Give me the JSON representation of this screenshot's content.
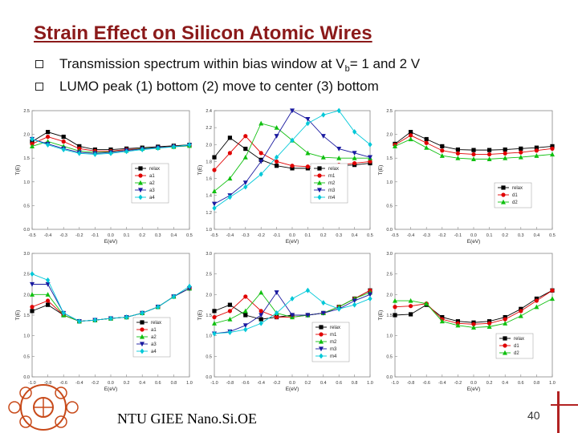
{
  "header": {
    "title": "Strain Effect on Silicon Atomic Wires"
  },
  "bullets": [
    {
      "text_before": "Transmission spectrum within bias window at V",
      "subscript": "b",
      "text_after": "= 1 and 2 V"
    },
    {
      "text": "LUMO peak (1) bottom (2) move to center (3) bottom"
    }
  ],
  "footer": {
    "text": "NTU GIEE Nano.Si.OE",
    "page": "40"
  },
  "chart_data": [
    {
      "type": "line",
      "xlabel": "E(eV)",
      "ylabel": "T(E)",
      "xlim": [
        -0.5,
        0.5
      ],
      "ylim": [
        0,
        2.5
      ],
      "xticks": [
        "-0.5",
        "-0.4",
        "-0.3",
        "-0.2",
        "-0.1",
        "0.0",
        "0.1",
        "0.2",
        "0.3",
        "0.4",
        "0.5"
      ],
      "yticks": [
        "0.0",
        "0.5",
        "1.0",
        "1.5",
        "2.0",
        "2.5"
      ],
      "legend_position": "right",
      "x": [
        -0.5,
        -0.4,
        -0.3,
        -0.2,
        -0.1,
        0.0,
        0.1,
        0.2,
        0.3,
        0.4,
        0.5
      ],
      "series": [
        {
          "name": "relax",
          "color": "#000000",
          "marker": "square",
          "values": [
            1.85,
            2.05,
            1.95,
            1.75,
            1.68,
            1.68,
            1.7,
            1.72,
            1.74,
            1.76,
            1.78
          ]
        },
        {
          "name": "a1",
          "color": "#e00000",
          "marker": "circle",
          "values": [
            1.8,
            1.95,
            1.85,
            1.7,
            1.65,
            1.65,
            1.68,
            1.7,
            1.72,
            1.75,
            1.77
          ]
        },
        {
          "name": "a2",
          "color": "#10c010",
          "marker": "triangle",
          "values": [
            1.75,
            1.85,
            1.75,
            1.65,
            1.62,
            1.63,
            1.66,
            1.7,
            1.72,
            1.74,
            1.76
          ]
        },
        {
          "name": "a3",
          "color": "#1a1aa0",
          "marker": "triangle-down",
          "values": [
            1.9,
            1.8,
            1.7,
            1.62,
            1.6,
            1.62,
            1.66,
            1.69,
            1.72,
            1.74,
            1.77
          ]
        },
        {
          "name": "a4",
          "color": "#00c8d8",
          "marker": "diamond",
          "values": [
            1.9,
            1.78,
            1.68,
            1.6,
            1.58,
            1.6,
            1.64,
            1.68,
            1.71,
            1.74,
            1.78
          ]
        }
      ]
    },
    {
      "type": "line",
      "xlabel": "E(eV)",
      "ylabel": "T(E)",
      "xlim": [
        -0.5,
        0.5
      ],
      "ylim": [
        1.0,
        2.4
      ],
      "xticks": [
        "-0.5",
        "-0.4",
        "-0.3",
        "-0.2",
        "-0.1",
        "0.0",
        "0.1",
        "0.2",
        "0.3",
        "0.4",
        "0.5"
      ],
      "yticks": [
        "1.0",
        "1.2",
        "1.4",
        "1.6",
        "1.8",
        "2.0",
        "2.2",
        "2.4"
      ],
      "legend_position": "right",
      "x": [
        -0.5,
        -0.4,
        -0.3,
        -0.2,
        -0.1,
        0.0,
        0.1,
        0.2,
        0.3,
        0.4,
        0.5
      ],
      "series": [
        {
          "name": "relax",
          "color": "#000000",
          "marker": "square",
          "values": [
            1.85,
            2.08,
            1.95,
            1.82,
            1.75,
            1.72,
            1.72,
            1.73,
            1.75,
            1.76,
            1.78
          ]
        },
        {
          "name": "m1",
          "color": "#e00000",
          "marker": "circle",
          "values": [
            1.7,
            1.9,
            2.1,
            1.9,
            1.8,
            1.75,
            1.74,
            1.75,
            1.76,
            1.78,
            1.8
          ]
        },
        {
          "name": "m2",
          "color": "#10c010",
          "marker": "triangle",
          "values": [
            1.45,
            1.6,
            1.85,
            2.25,
            2.2,
            2.05,
            1.9,
            1.85,
            1.84,
            1.84,
            1.84
          ]
        },
        {
          "name": "m3",
          "color": "#1a1aa0",
          "marker": "triangle-down",
          "values": [
            1.3,
            1.4,
            1.55,
            1.8,
            2.1,
            2.4,
            2.3,
            2.1,
            1.95,
            1.9,
            1.85
          ]
        },
        {
          "name": "m4",
          "color": "#00c8d8",
          "marker": "diamond",
          "values": [
            1.25,
            1.38,
            1.5,
            1.65,
            1.85,
            2.05,
            2.25,
            2.35,
            2.4,
            2.15,
            2.0
          ]
        }
      ]
    },
    {
      "type": "line",
      "xlabel": "E(eV)",
      "ylabel": "T(E)",
      "xlim": [
        -0.5,
        0.5
      ],
      "ylim": [
        0,
        2.5
      ],
      "xticks": [
        "-0.5",
        "-0.4",
        "-0.3",
        "-0.2",
        "-0.1",
        "0.0",
        "0.1",
        "0.2",
        "0.3",
        "0.4",
        "0.5"
      ],
      "yticks": [
        "0.0",
        "0.5",
        "1.0",
        "1.5",
        "2.0",
        "2.5"
      ],
      "legend_position": "bottom-right",
      "x": [
        -0.5,
        -0.4,
        -0.3,
        -0.2,
        -0.1,
        0.0,
        0.1,
        0.2,
        0.3,
        0.4,
        0.5
      ],
      "series": [
        {
          "name": "relax",
          "color": "#000000",
          "marker": "square",
          "values": [
            1.8,
            2.05,
            1.9,
            1.75,
            1.68,
            1.67,
            1.67,
            1.68,
            1.7,
            1.72,
            1.75
          ]
        },
        {
          "name": "d1",
          "color": "#e00000",
          "marker": "circle",
          "values": [
            1.78,
            1.98,
            1.82,
            1.66,
            1.6,
            1.58,
            1.58,
            1.6,
            1.62,
            1.66,
            1.7
          ]
        },
        {
          "name": "d2",
          "color": "#10c010",
          "marker": "triangle",
          "values": [
            1.75,
            1.9,
            1.72,
            1.55,
            1.5,
            1.48,
            1.48,
            1.5,
            1.52,
            1.55,
            1.58
          ]
        }
      ]
    },
    {
      "type": "line",
      "xlabel": "E(eV)",
      "ylabel": "T(E)",
      "xlim": [
        -1.0,
        1.0
      ],
      "ylim": [
        0,
        3.0
      ],
      "xticks": [
        "-1.0",
        "-0.8",
        "-0.6",
        "-0.4",
        "-0.2",
        "0.0",
        "0.2",
        "0.4",
        "0.6",
        "0.8",
        "1.0"
      ],
      "yticks": [
        "0.0",
        "0.5",
        "1.0",
        "1.5",
        "2.0",
        "2.5",
        "3.0"
      ],
      "legend_position": "bottom-right",
      "x": [
        -1.0,
        -0.8,
        -0.6,
        -0.4,
        -0.2,
        0.0,
        0.2,
        0.4,
        0.6,
        0.8,
        1.0
      ],
      "series": [
        {
          "name": "relax",
          "color": "#000000",
          "marker": "square",
          "values": [
            1.6,
            1.75,
            1.5,
            1.35,
            1.38,
            1.42,
            1.45,
            1.55,
            1.7,
            1.95,
            2.15
          ]
        },
        {
          "name": "a1",
          "color": "#e00000",
          "marker": "circle",
          "values": [
            1.7,
            1.85,
            1.5,
            1.35,
            1.38,
            1.42,
            1.45,
            1.55,
            1.7,
            1.95,
            2.15
          ]
        },
        {
          "name": "a2",
          "color": "#10c010",
          "marker": "triangle",
          "values": [
            2.0,
            2.0,
            1.5,
            1.35,
            1.38,
            1.42,
            1.45,
            1.55,
            1.7,
            1.95,
            2.15
          ]
        },
        {
          "name": "a3",
          "color": "#1a1aa0",
          "marker": "triangle-down",
          "values": [
            2.25,
            2.25,
            1.55,
            1.35,
            1.38,
            1.42,
            1.45,
            1.55,
            1.7,
            1.95,
            2.15
          ]
        },
        {
          "name": "a4",
          "color": "#00c8d8",
          "marker": "diamond",
          "values": [
            2.5,
            2.35,
            1.55,
            1.35,
            1.38,
            1.42,
            1.45,
            1.55,
            1.7,
            1.95,
            2.2
          ]
        }
      ]
    },
    {
      "type": "line",
      "xlabel": "E(eV)",
      "ylabel": "T(E)",
      "xlim": [
        -1.0,
        1.0
      ],
      "ylim": [
        0,
        3.0
      ],
      "xticks": [
        "-1.0",
        "-0.8",
        "-0.6",
        "-0.4",
        "-0.2",
        "0.0",
        "0.2",
        "0.4",
        "0.6",
        "0.8",
        "1.0"
      ],
      "yticks": [
        "0.0",
        "0.5",
        "1.0",
        "1.5",
        "2.0",
        "2.5",
        "3.0"
      ],
      "legend_position": "bottom-right",
      "x": [
        -1.0,
        -0.8,
        -0.6,
        -0.4,
        -0.2,
        0.0,
        0.2,
        0.4,
        0.6,
        0.8,
        1.0
      ],
      "series": [
        {
          "name": "relax",
          "color": "#000000",
          "marker": "square",
          "values": [
            1.6,
            1.75,
            1.5,
            1.4,
            1.45,
            1.5,
            1.5,
            1.55,
            1.7,
            1.9,
            2.1
          ]
        },
        {
          "name": "m1",
          "color": "#e00000",
          "marker": "circle",
          "values": [
            1.45,
            1.6,
            1.95,
            1.6,
            1.45,
            1.45,
            1.5,
            1.55,
            1.7,
            1.9,
            2.1
          ]
        },
        {
          "name": "m2",
          "color": "#10c010",
          "marker": "triangle",
          "values": [
            1.3,
            1.4,
            1.6,
            2.05,
            1.55,
            1.45,
            1.5,
            1.55,
            1.7,
            1.9,
            2.05
          ]
        },
        {
          "name": "m3",
          "color": "#1a1aa0",
          "marker": "triangle-down",
          "values": [
            1.05,
            1.1,
            1.25,
            1.5,
            2.05,
            1.5,
            1.5,
            1.55,
            1.65,
            1.85,
            2.0
          ]
        },
        {
          "name": "m4",
          "color": "#00c8d8",
          "marker": "diamond",
          "values": [
            1.05,
            1.08,
            1.15,
            1.3,
            1.55,
            1.9,
            2.1,
            1.8,
            1.65,
            1.75,
            1.9
          ]
        }
      ]
    },
    {
      "type": "line",
      "xlabel": "E(eV)",
      "ylabel": "T(E)",
      "xlim": [
        -1.0,
        1.0
      ],
      "ylim": [
        0,
        3.0
      ],
      "xticks": [
        "-1.0",
        "-0.8",
        "-0.6",
        "-0.4",
        "-0.2",
        "0.0",
        "0.2",
        "0.4",
        "0.6",
        "0.8",
        "1.0"
      ],
      "yticks": [
        "0.0",
        "0.5",
        "1.0",
        "1.5",
        "2.0",
        "2.5",
        "3.0"
      ],
      "legend_position": "bottom-right",
      "x": [
        -1.0,
        -0.8,
        -0.6,
        -0.4,
        -0.2,
        0.0,
        0.2,
        0.4,
        0.6,
        0.8,
        1.0
      ],
      "series": [
        {
          "name": "relax",
          "color": "#000000",
          "marker": "square",
          "values": [
            1.5,
            1.52,
            1.75,
            1.45,
            1.35,
            1.32,
            1.35,
            1.45,
            1.65,
            1.9,
            2.1
          ]
        },
        {
          "name": "d1",
          "color": "#e00000",
          "marker": "circle",
          "values": [
            1.7,
            1.72,
            1.78,
            1.4,
            1.3,
            1.28,
            1.3,
            1.4,
            1.6,
            1.85,
            2.1
          ]
        },
        {
          "name": "d2",
          "color": "#10c010",
          "marker": "triangle",
          "values": [
            1.85,
            1.85,
            1.78,
            1.35,
            1.25,
            1.2,
            1.22,
            1.3,
            1.48,
            1.7,
            1.9
          ]
        }
      ]
    }
  ]
}
